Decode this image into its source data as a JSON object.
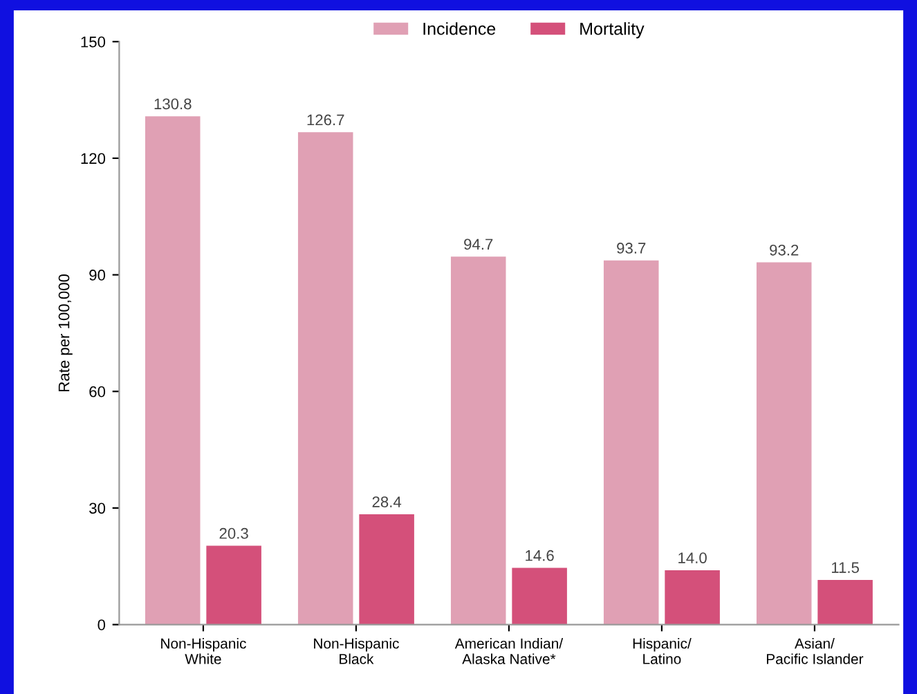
{
  "chart_data": {
    "type": "bar",
    "ylabel": "Rate per 100,000",
    "categories": [
      "Non-Hispanic\nWhite",
      "Non-Hispanic\nBlack",
      "American Indian/\nAlaska Native*",
      "Hispanic/\nLatino",
      "Asian/\nPacific Islander"
    ],
    "series": [
      {
        "name": "Incidence",
        "color": "#e0a0b4",
        "values": [
          130.8,
          126.7,
          94.7,
          93.7,
          93.2
        ],
        "value_labels": [
          "130.8",
          "126.7",
          "94.7",
          "93.7",
          "93.2"
        ]
      },
      {
        "name": "Mortality",
        "color": "#d4507a",
        "values": [
          20.3,
          28.4,
          14.6,
          14.0,
          11.5
        ],
        "value_labels": [
          "20.3",
          "28.4",
          "14.6",
          "14.0",
          "11.5"
        ]
      }
    ],
    "ylim": [
      0,
      150
    ],
    "yticks": [
      0,
      30,
      60,
      90,
      120,
      150
    ],
    "grid": false,
    "legend": "top"
  }
}
